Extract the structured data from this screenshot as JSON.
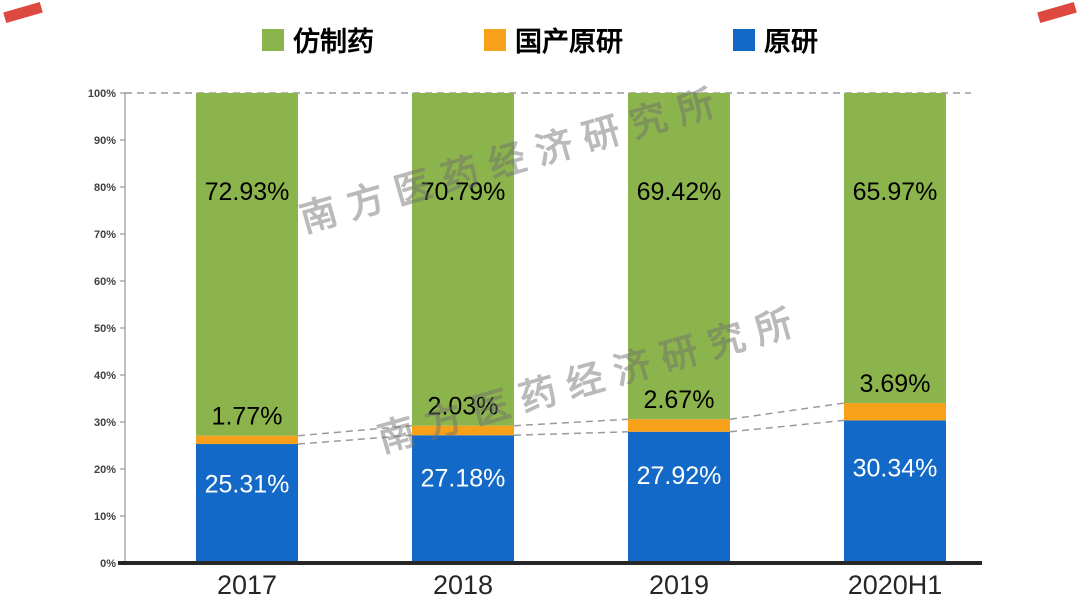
{
  "watermark": {
    "text": "南方医药经济研究所"
  },
  "legend": {
    "items": [
      {
        "label": "仿制药",
        "color": "#8CB44C"
      },
      {
        "label": "国产原研",
        "color": "#F7A11A"
      },
      {
        "label": "原研",
        "color": "#1269C7"
      }
    ]
  },
  "chart_data": {
    "type": "bar",
    "stacked": true,
    "title": "",
    "categories": [
      "2017",
      "2018",
      "2019",
      "2020H1"
    ],
    "series": [
      {
        "name": "原研",
        "key": "originator",
        "color": "#1269C7",
        "label_color": "#ffffff",
        "values": [
          25.31,
          27.18,
          27.92,
          30.34
        ]
      },
      {
        "name": "国产原研",
        "key": "domestic-originator",
        "color": "#F7A11A",
        "label_color": "#000000",
        "values": [
          1.77,
          2.03,
          2.67,
          3.69
        ]
      },
      {
        "name": "仿制药",
        "key": "generics",
        "color": "#8CB44C",
        "label_color": "#000000",
        "values": [
          72.93,
          70.79,
          69.42,
          65.97
        ]
      }
    ],
    "ylim": [
      0,
      100
    ],
    "yticks": [
      "0%",
      "10%",
      "20%",
      "30%",
      "40%",
      "50%",
      "60%",
      "70%",
      "80%",
      "90%",
      "100%"
    ],
    "legend_position": "top",
    "grid": "dashed line at 100% plus dashed connectors between stack boundaries"
  }
}
